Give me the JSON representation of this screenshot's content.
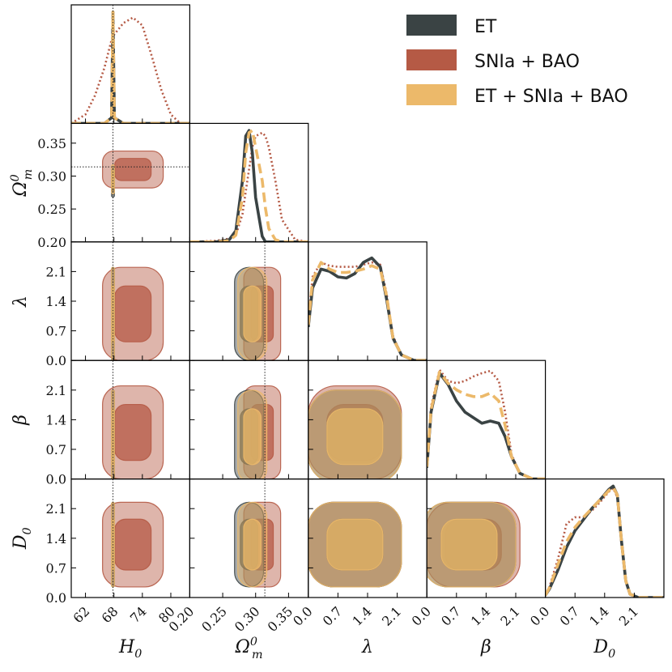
{
  "chart_data": {
    "type": "corner",
    "parameters": [
      {
        "name": "H0",
        "label": "H",
        "sub": "0",
        "sup": "",
        "range": [
          59,
          84
        ],
        "ticks": [
          62,
          68,
          74,
          80
        ],
        "tick_labels": [
          "62",
          "68",
          "74",
          "80"
        ]
      },
      {
        "name": "Om",
        "label": "Ω",
        "sub": "m",
        "sup": "0",
        "range": [
          0.2,
          0.38
        ],
        "ticks": [
          0.2,
          0.25,
          0.3,
          0.35
        ],
        "tick_labels": [
          "0.20",
          "0.25",
          "0.30",
          "0.35"
        ]
      },
      {
        "name": "lambda",
        "label": "λ",
        "sub": "",
        "sup": "",
        "range": [
          0.0,
          2.8
        ],
        "ticks": [
          0.0,
          0.7,
          1.4,
          2.1
        ],
        "tick_labels": [
          "0.0",
          "0.7",
          "1.4",
          "2.1"
        ]
      },
      {
        "name": "beta",
        "label": "β",
        "sub": "",
        "sup": "",
        "range": [
          0.0,
          2.8
        ],
        "ticks": [
          0.0,
          0.7,
          1.4,
          2.1
        ],
        "tick_labels": [
          "0.0",
          "0.7",
          "1.4",
          "2.1"
        ]
      },
      {
        "name": "D0",
        "label": "D",
        "sub": "0",
        "sup": "",
        "range": [
          0.0,
          2.8
        ],
        "ticks": [
          0.0,
          0.7,
          1.4,
          2.1
        ],
        "tick_labels": [
          "0.0",
          "0.7",
          "1.4",
          "2.1"
        ]
      }
    ],
    "fiducial": {
      "H0": 67.8,
      "Om": 0.314
    },
    "legend": [
      {
        "name": "ET",
        "color": "#3a4344"
      },
      {
        "name": "SNIa + BAO",
        "color": "#b55a45"
      },
      {
        "name": "ET + SNIa + BAO",
        "color": "#ecb96a"
      }
    ],
    "series": [
      {
        "name": "ET",
        "color": "#3a4344",
        "line": "solid",
        "means": {
          "H0": 67.8,
          "Om": 0.29,
          "lambda": 1.1,
          "beta": 1.0,
          "D0": 1.25
        },
        "sigmas": {
          "H0": 0.15,
          "Om": 0.011,
          "lambda": 0.55,
          "beta": 0.55,
          "D0": 0.5
        }
      },
      {
        "name": "SNIa + BAO",
        "color": "#b55a45",
        "line": "dotted",
        "means": {
          "H0": 72.0,
          "Om": 0.31,
          "lambda": 1.1,
          "beta": 1.1,
          "D0": 1.25
        },
        "sigmas": {
          "H0": 3.2,
          "Om": 0.014,
          "lambda": 0.55,
          "beta": 0.55,
          "D0": 0.5
        }
      },
      {
        "name": "ET + SNIa + BAO",
        "color": "#ecb96a",
        "line": "dashed",
        "means": {
          "H0": 67.8,
          "Om": 0.295,
          "lambda": 1.1,
          "beta": 1.0,
          "D0": 1.25
        },
        "sigmas": {
          "H0": 0.15,
          "Om": 0.011,
          "lambda": 0.55,
          "beta": 0.55,
          "D0": 0.5
        }
      }
    ],
    "pdfs": {
      "H0": {
        "x": [
          59,
          62,
          64,
          66,
          67.5,
          67.8,
          68.1,
          70,
          72,
          74,
          76,
          78,
          80,
          82,
          84
        ],
        "ET": [
          0,
          0,
          0,
          0,
          0.05,
          1.0,
          0.05,
          0,
          0,
          0,
          0,
          0,
          0,
          0,
          0
        ],
        "SNIa + BAO": [
          0.0,
          0.08,
          0.25,
          0.5,
          0.75,
          0.78,
          0.8,
          0.9,
          0.95,
          0.88,
          0.6,
          0.3,
          0.08,
          0.0,
          0.0
        ],
        "ET + SNIa + BAO": [
          0,
          0,
          0,
          0,
          0.05,
          1.0,
          0.05,
          0,
          0,
          0,
          0,
          0,
          0,
          0,
          0
        ]
      },
      "Om": {
        "x": [
          0.2,
          0.24,
          0.26,
          0.27,
          0.28,
          0.285,
          0.29,
          0.295,
          0.3,
          0.31,
          0.315,
          0.32,
          0.33,
          0.34,
          0.36,
          0.38
        ],
        "ET": [
          0.0,
          0.0,
          0.02,
          0.1,
          0.55,
          0.95,
          1.0,
          0.8,
          0.4,
          0.05,
          0.0,
          0.0,
          0.0,
          0.0,
          0.0,
          0.0
        ],
        "SNIa + BAO": [
          0.0,
          0.01,
          0.03,
          0.06,
          0.25,
          0.45,
          0.65,
          0.85,
          0.95,
          0.98,
          0.95,
          0.85,
          0.55,
          0.2,
          0.02,
          0.0
        ],
        "ET + SNIa + BAO": [
          0.0,
          0.0,
          0.01,
          0.06,
          0.4,
          0.8,
          0.98,
          1.0,
          0.85,
          0.55,
          0.3,
          0.12,
          0.02,
          0.0,
          0.0,
          0.0
        ]
      },
      "lambda": {
        "x": [
          0.0,
          0.1,
          0.3,
          0.5,
          0.7,
          0.9,
          1.1,
          1.3,
          1.5,
          1.7,
          1.85,
          2.0,
          2.2,
          2.5,
          2.8
        ],
        "ET": [
          0.3,
          0.65,
          0.82,
          0.8,
          0.75,
          0.74,
          0.78,
          0.88,
          0.92,
          0.84,
          0.55,
          0.2,
          0.05,
          0.0,
          0.0
        ],
        "SNIa + BAO": [
          0.35,
          0.75,
          0.88,
          0.85,
          0.84,
          0.84,
          0.84,
          0.86,
          0.88,
          0.86,
          0.6,
          0.22,
          0.05,
          0.0,
          0.0
        ],
        "ET + SNIa + BAO": [
          0.32,
          0.72,
          0.88,
          0.82,
          0.79,
          0.79,
          0.8,
          0.82,
          0.85,
          0.82,
          0.58,
          0.2,
          0.05,
          0.0,
          0.0
        ]
      },
      "beta": {
        "x": [
          0.0,
          0.1,
          0.3,
          0.5,
          0.7,
          0.9,
          1.1,
          1.3,
          1.5,
          1.7,
          1.85,
          2.0,
          2.2,
          2.5,
          2.8
        ],
        "ET": [
          0.1,
          0.6,
          0.95,
          0.85,
          0.7,
          0.6,
          0.55,
          0.5,
          0.52,
          0.5,
          0.38,
          0.2,
          0.05,
          0.0,
          0.0
        ],
        "SNIa + BAO": [
          0.12,
          0.65,
          0.98,
          0.88,
          0.86,
          0.88,
          0.92,
          0.95,
          0.97,
          0.88,
          0.6,
          0.22,
          0.05,
          0.0,
          0.0
        ],
        "ET + SNIa + BAO": [
          0.11,
          0.62,
          0.96,
          0.86,
          0.8,
          0.76,
          0.74,
          0.74,
          0.77,
          0.7,
          0.48,
          0.2,
          0.05,
          0.0,
          0.0
        ]
      },
      "D0": {
        "x": [
          0.0,
          0.1,
          0.3,
          0.5,
          0.7,
          0.9,
          1.1,
          1.3,
          1.5,
          1.6,
          1.7,
          1.8,
          1.9,
          2.0,
          2.2,
          2.5,
          2.8
        ],
        "ET": [
          0.02,
          0.08,
          0.25,
          0.45,
          0.6,
          0.7,
          0.8,
          0.88,
          0.97,
          1.0,
          0.92,
          0.5,
          0.15,
          0.03,
          0.0,
          0.0,
          0.0
        ],
        "SNIa + BAO": [
          0.02,
          0.1,
          0.35,
          0.66,
          0.72,
          0.72,
          0.78,
          0.86,
          0.95,
          0.98,
          0.9,
          0.5,
          0.15,
          0.03,
          0.0,
          0.0,
          0.0
        ],
        "ET + SNIa + BAO": [
          0.02,
          0.09,
          0.3,
          0.5,
          0.63,
          0.72,
          0.8,
          0.88,
          0.96,
          0.99,
          0.92,
          0.5,
          0.15,
          0.03,
          0.0,
          0.0,
          0.0
        ]
      }
    }
  }
}
